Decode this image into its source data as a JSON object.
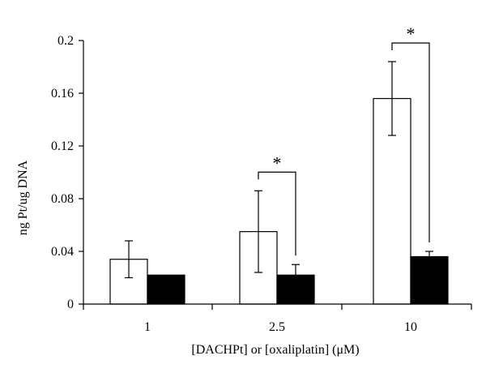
{
  "chart_data": {
    "type": "bar",
    "title": "",
    "xlabel": "[DACHPt] or [oxaliplatin] (μM)",
    "ylabel": "ng Pt/ug DNA",
    "ylim": [
      0,
      0.2
    ],
    "yticks": [
      "0",
      "0.04",
      "0.08",
      "0.12",
      "0.16",
      "0.2"
    ],
    "categories": [
      "1",
      "2.5",
      "10"
    ],
    "series": [
      {
        "fill": "#ffffff",
        "values": [
          0.034,
          0.055,
          0.156
        ],
        "err": [
          0.014,
          0.031,
          0.028
        ]
      },
      {
        "fill": "#000000",
        "values": [
          0.022,
          0.022,
          0.036
        ],
        "err": [
          0.0005,
          0.008,
          0.004
        ]
      }
    ],
    "significance": [
      {
        "category_index": 1,
        "label": "*"
      },
      {
        "category_index": 2,
        "label": "*"
      }
    ]
  }
}
